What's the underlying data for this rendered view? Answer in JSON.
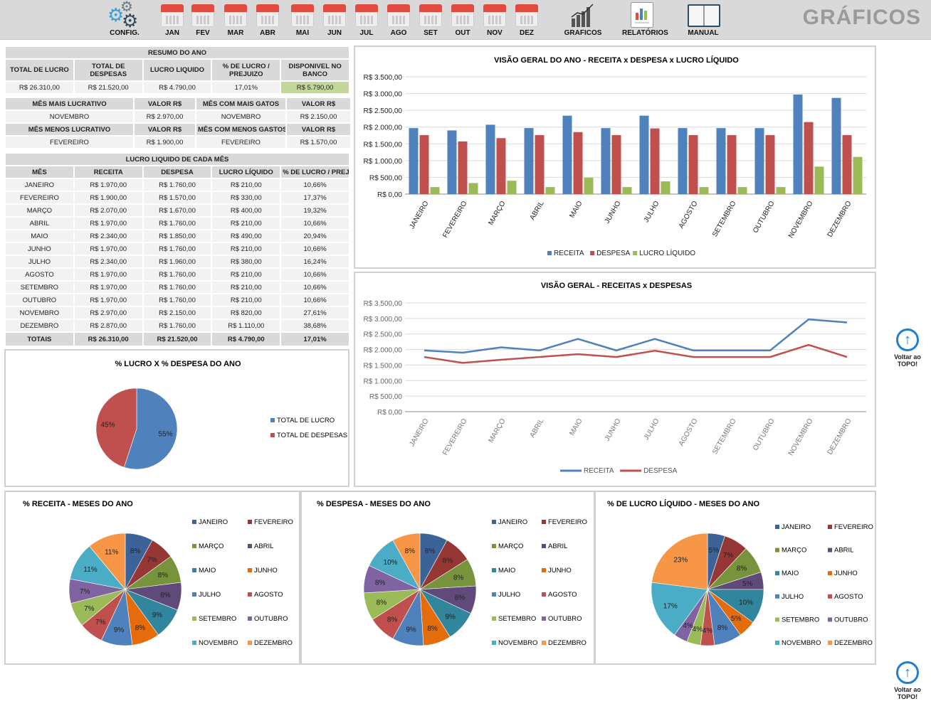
{
  "toolbar": {
    "title": "GRÁFICOS",
    "items": [
      {
        "label": "CONFIG.",
        "icon": "gears-icon"
      },
      {
        "label": "JAN",
        "icon": "calendar-icon"
      },
      {
        "label": "FEV",
        "icon": "calendar-icon"
      },
      {
        "label": "MAR",
        "icon": "calendar-icon"
      },
      {
        "label": "ABR",
        "icon": "calendar-icon"
      },
      {
        "label": "MAI",
        "icon": "calendar-icon"
      },
      {
        "label": "JUN",
        "icon": "calendar-icon"
      },
      {
        "label": "JUL",
        "icon": "calendar-icon"
      },
      {
        "label": "AGO",
        "icon": "calendar-icon"
      },
      {
        "label": "SET",
        "icon": "calendar-icon"
      },
      {
        "label": "OUT",
        "icon": "calendar-icon"
      },
      {
        "label": "NOV",
        "icon": "calendar-icon"
      },
      {
        "label": "DEZ",
        "icon": "calendar-icon"
      },
      {
        "label": "GRAFICOS",
        "icon": "bar-chart-icon"
      },
      {
        "label": "RELATÓRIOS",
        "icon": "report-icon"
      },
      {
        "label": "MANUAL",
        "icon": "book-icon"
      }
    ]
  },
  "resumo": {
    "title": "RESUMO DO ANO",
    "headers": [
      "TOTAL DE LUCRO",
      "TOTAL DE DESPESAS",
      "LUCRO LIQUIDO",
      "% DE LUCRO / PREJUIZO",
      "DISPONIVEL NO BANCO"
    ],
    "values": [
      "R$ 26.310,00",
      "R$ 21.520,00",
      "R$ 4.790,00",
      "17,01%",
      "R$ 5.790,00"
    ]
  },
  "destaques": {
    "rows": [
      [
        "MÊS MAIS LUCRATIVO",
        "VALOR R$",
        "MÊS COM MAIS GATOS",
        "VALOR R$"
      ],
      [
        "NOVEMBRO",
        "R$ 2.970,00",
        "NOVEMBRO",
        "R$ 2.150,00"
      ],
      [
        "MÊS MENOS LUCRATIVO",
        "VALOR R$",
        "MÊS COM MENOS GASTOS",
        "VALOR R$"
      ],
      [
        "FEVEREIRO",
        "R$ 1.900,00",
        "FEVEREIRO",
        "R$ 1.570,00"
      ]
    ]
  },
  "lucro_table": {
    "title": "LUCRO LIQUIDO DE CADA MÊS",
    "headers": [
      "MÊS",
      "RECEITA",
      "DESPESA",
      "LUCRO LÍQUIDO",
      "% DE LUCRO / PREJUIZO"
    ],
    "rows": [
      [
        "JANEIRO",
        "R$ 1.970,00",
        "R$ 1.760,00",
        "R$ 210,00",
        "10,66%"
      ],
      [
        "FEVEREIRO",
        "R$ 1.900,00",
        "R$ 1.570,00",
        "R$ 330,00",
        "17,37%"
      ],
      [
        "MARÇO",
        "R$ 2.070,00",
        "R$ 1.670,00",
        "R$ 400,00",
        "19,32%"
      ],
      [
        "ABRIL",
        "R$ 1.970,00",
        "R$ 1.760,00",
        "R$ 210,00",
        "10,66%"
      ],
      [
        "MAIO",
        "R$ 2.340,00",
        "R$ 1.850,00",
        "R$ 490,00",
        "20,94%"
      ],
      [
        "JUNHO",
        "R$ 1.970,00",
        "R$ 1.760,00",
        "R$ 210,00",
        "10,66%"
      ],
      [
        "JULHO",
        "R$ 2.340,00",
        "R$ 1.960,00",
        "R$ 380,00",
        "16,24%"
      ],
      [
        "AGOSTO",
        "R$ 1.970,00",
        "R$ 1.760,00",
        "R$ 210,00",
        "10,66%"
      ],
      [
        "SETEMBRO",
        "R$ 1.970,00",
        "R$ 1.760,00",
        "R$ 210,00",
        "10,66%"
      ],
      [
        "OUTUBRO",
        "R$ 1.970,00",
        "R$ 1.760,00",
        "R$ 210,00",
        "10,66%"
      ],
      [
        "NOVEMBRO",
        "R$ 2.970,00",
        "R$ 2.150,00",
        "R$ 820,00",
        "27,61%"
      ],
      [
        "DEZEMBRO",
        "R$ 2.870,00",
        "R$ 1.760,00",
        "R$ 1.110,00",
        "38,68%"
      ]
    ],
    "totals": [
      "TOTAIS",
      "R$ 26.310,00",
      "R$ 21.520,00",
      "R$ 4.790,00",
      "17,01%"
    ]
  },
  "voltar_label": "Voltar ao TOPO!",
  "chart_data": [
    {
      "id": "bar",
      "type": "bar",
      "title": "VISÃO GERAL DO ANO - RECEITA x DESPESA x LUCRO LÍQUIDO",
      "categories": [
        "JANEIRO",
        "FEVEREIRO",
        "MARÇO",
        "ABRIL",
        "MAIO",
        "JUNHO",
        "JULHO",
        "AGOSTO",
        "SETEMBRO",
        "OUTUBRO",
        "NOVEMBRO",
        "DEZEMBRO"
      ],
      "series": [
        {
          "name": "RECEITA",
          "color": "#4f81bd",
          "values": [
            1970,
            1900,
            2070,
            1970,
            2340,
            1970,
            2340,
            1970,
            1970,
            1970,
            2970,
            2870
          ]
        },
        {
          "name": "DESPESA",
          "color": "#c0504d",
          "values": [
            1760,
            1570,
            1670,
            1760,
            1850,
            1760,
            1960,
            1760,
            1760,
            1760,
            2150,
            1760
          ]
        },
        {
          "name": "LUCRO LÍQUIDO",
          "color": "#9bbb59",
          "values": [
            210,
            330,
            400,
            210,
            490,
            210,
            380,
            210,
            210,
            210,
            820,
            1110
          ]
        }
      ],
      "ylim": [
        0,
        3500
      ],
      "yticks": [
        "R$ 0,00",
        "R$ 500,00",
        "R$ 1.000,00",
        "R$ 1.500,00",
        "R$ 2.000,00",
        "R$ 2.500,00",
        "R$ 3.000,00",
        "R$ 3.500,00"
      ],
      "grid": true,
      "legend": "bottom"
    },
    {
      "id": "line",
      "type": "line",
      "title": "VISÃO GERAL - RECEITAS x DESPESAS",
      "categories": [
        "JANEIRO",
        "FEVEREIRO",
        "MARÇO",
        "ABRIL",
        "MAIO",
        "JUNHO",
        "JULHO",
        "AGOSTO",
        "SETEMBRO",
        "OUTUBRO",
        "NOVEMBRO",
        "DEZEMBRO"
      ],
      "series": [
        {
          "name": "RECEITA",
          "color": "#4f81bd",
          "values": [
            1970,
            1900,
            2070,
            1970,
            2340,
            1970,
            2340,
            1970,
            1970,
            1970,
            2970,
            2870
          ]
        },
        {
          "name": "DESPESA",
          "color": "#c0504d",
          "values": [
            1760,
            1570,
            1670,
            1760,
            1850,
            1760,
            1960,
            1760,
            1760,
            1760,
            2150,
            1760
          ]
        }
      ],
      "ylim": [
        0,
        3500
      ],
      "yticks": [
        "R$ 0,00",
        "R$ 500,00",
        "R$ 1.000,00",
        "R$ 1.500,00",
        "R$ 2.000,00",
        "R$ 2.500,00",
        "R$ 3.000,00",
        "R$ 3.500,00"
      ],
      "grid": true,
      "legend": "bottom"
    },
    {
      "id": "pie-lucro-despesa",
      "type": "pie",
      "title": "% LUCRO X % DESPESA DO ANO",
      "labels": [
        "TOTAL DE LUCRO",
        "TOTAL DE DESPESAS"
      ],
      "values": [
        55,
        45
      ],
      "colors": [
        "#4f81bd",
        "#c0504d"
      ],
      "legend": "right"
    },
    {
      "id": "pie-receita",
      "type": "pie",
      "title": "% RECEITA - MESES DO ANO",
      "labels": [
        "JANEIRO",
        "FEVEREIRO",
        "MARÇO",
        "ABRIL",
        "MAIO",
        "JUNHO",
        "JULHO",
        "AGOSTO",
        "SETEMBRO",
        "OUTUBRO",
        "NOVEMBRO",
        "DEZEMBRO"
      ],
      "values": [
        8,
        7,
        8,
        8,
        9,
        8,
        9,
        7,
        7,
        7,
        11,
        11
      ],
      "legend": "right"
    },
    {
      "id": "pie-despesa",
      "type": "pie",
      "title": "% DESPESA - MESES DO ANO",
      "labels": [
        "JANEIRO",
        "FEVEREIRO",
        "MARÇO",
        "ABRIL",
        "MAIO",
        "JUNHO",
        "JULHO",
        "AGOSTO",
        "SETEMBRO",
        "OUTUBRO",
        "NOVEMBRO",
        "DEZEMBRO"
      ],
      "values": [
        8,
        8,
        8,
        8,
        9,
        8,
        9,
        8,
        8,
        8,
        10,
        8
      ],
      "legend": "right"
    },
    {
      "id": "pie-lucro",
      "type": "pie",
      "title": "% DE LUCRO LÍQUIDO - MESES DO ANO",
      "labels": [
        "JANEIRO",
        "FEVEREIRO",
        "MARÇO",
        "ABRIL",
        "MAIO",
        "JUNHO",
        "JULHO",
        "AGOSTO",
        "SETEMBRO",
        "OUTUBRO",
        "NOVEMBRO",
        "DEZEMBRO"
      ],
      "values": [
        5,
        7,
        8,
        5,
        10,
        5,
        8,
        4,
        4,
        4,
        17,
        23
      ],
      "legend": "right"
    }
  ],
  "month_colors": [
    "#3b6397",
    "#953735",
    "#77933c",
    "#604a7b",
    "#31859c",
    "#e46c0a",
    "#4f81bd",
    "#c0504d",
    "#9bbb59",
    "#8064a2",
    "#4bacc6",
    "#f79646"
  ]
}
